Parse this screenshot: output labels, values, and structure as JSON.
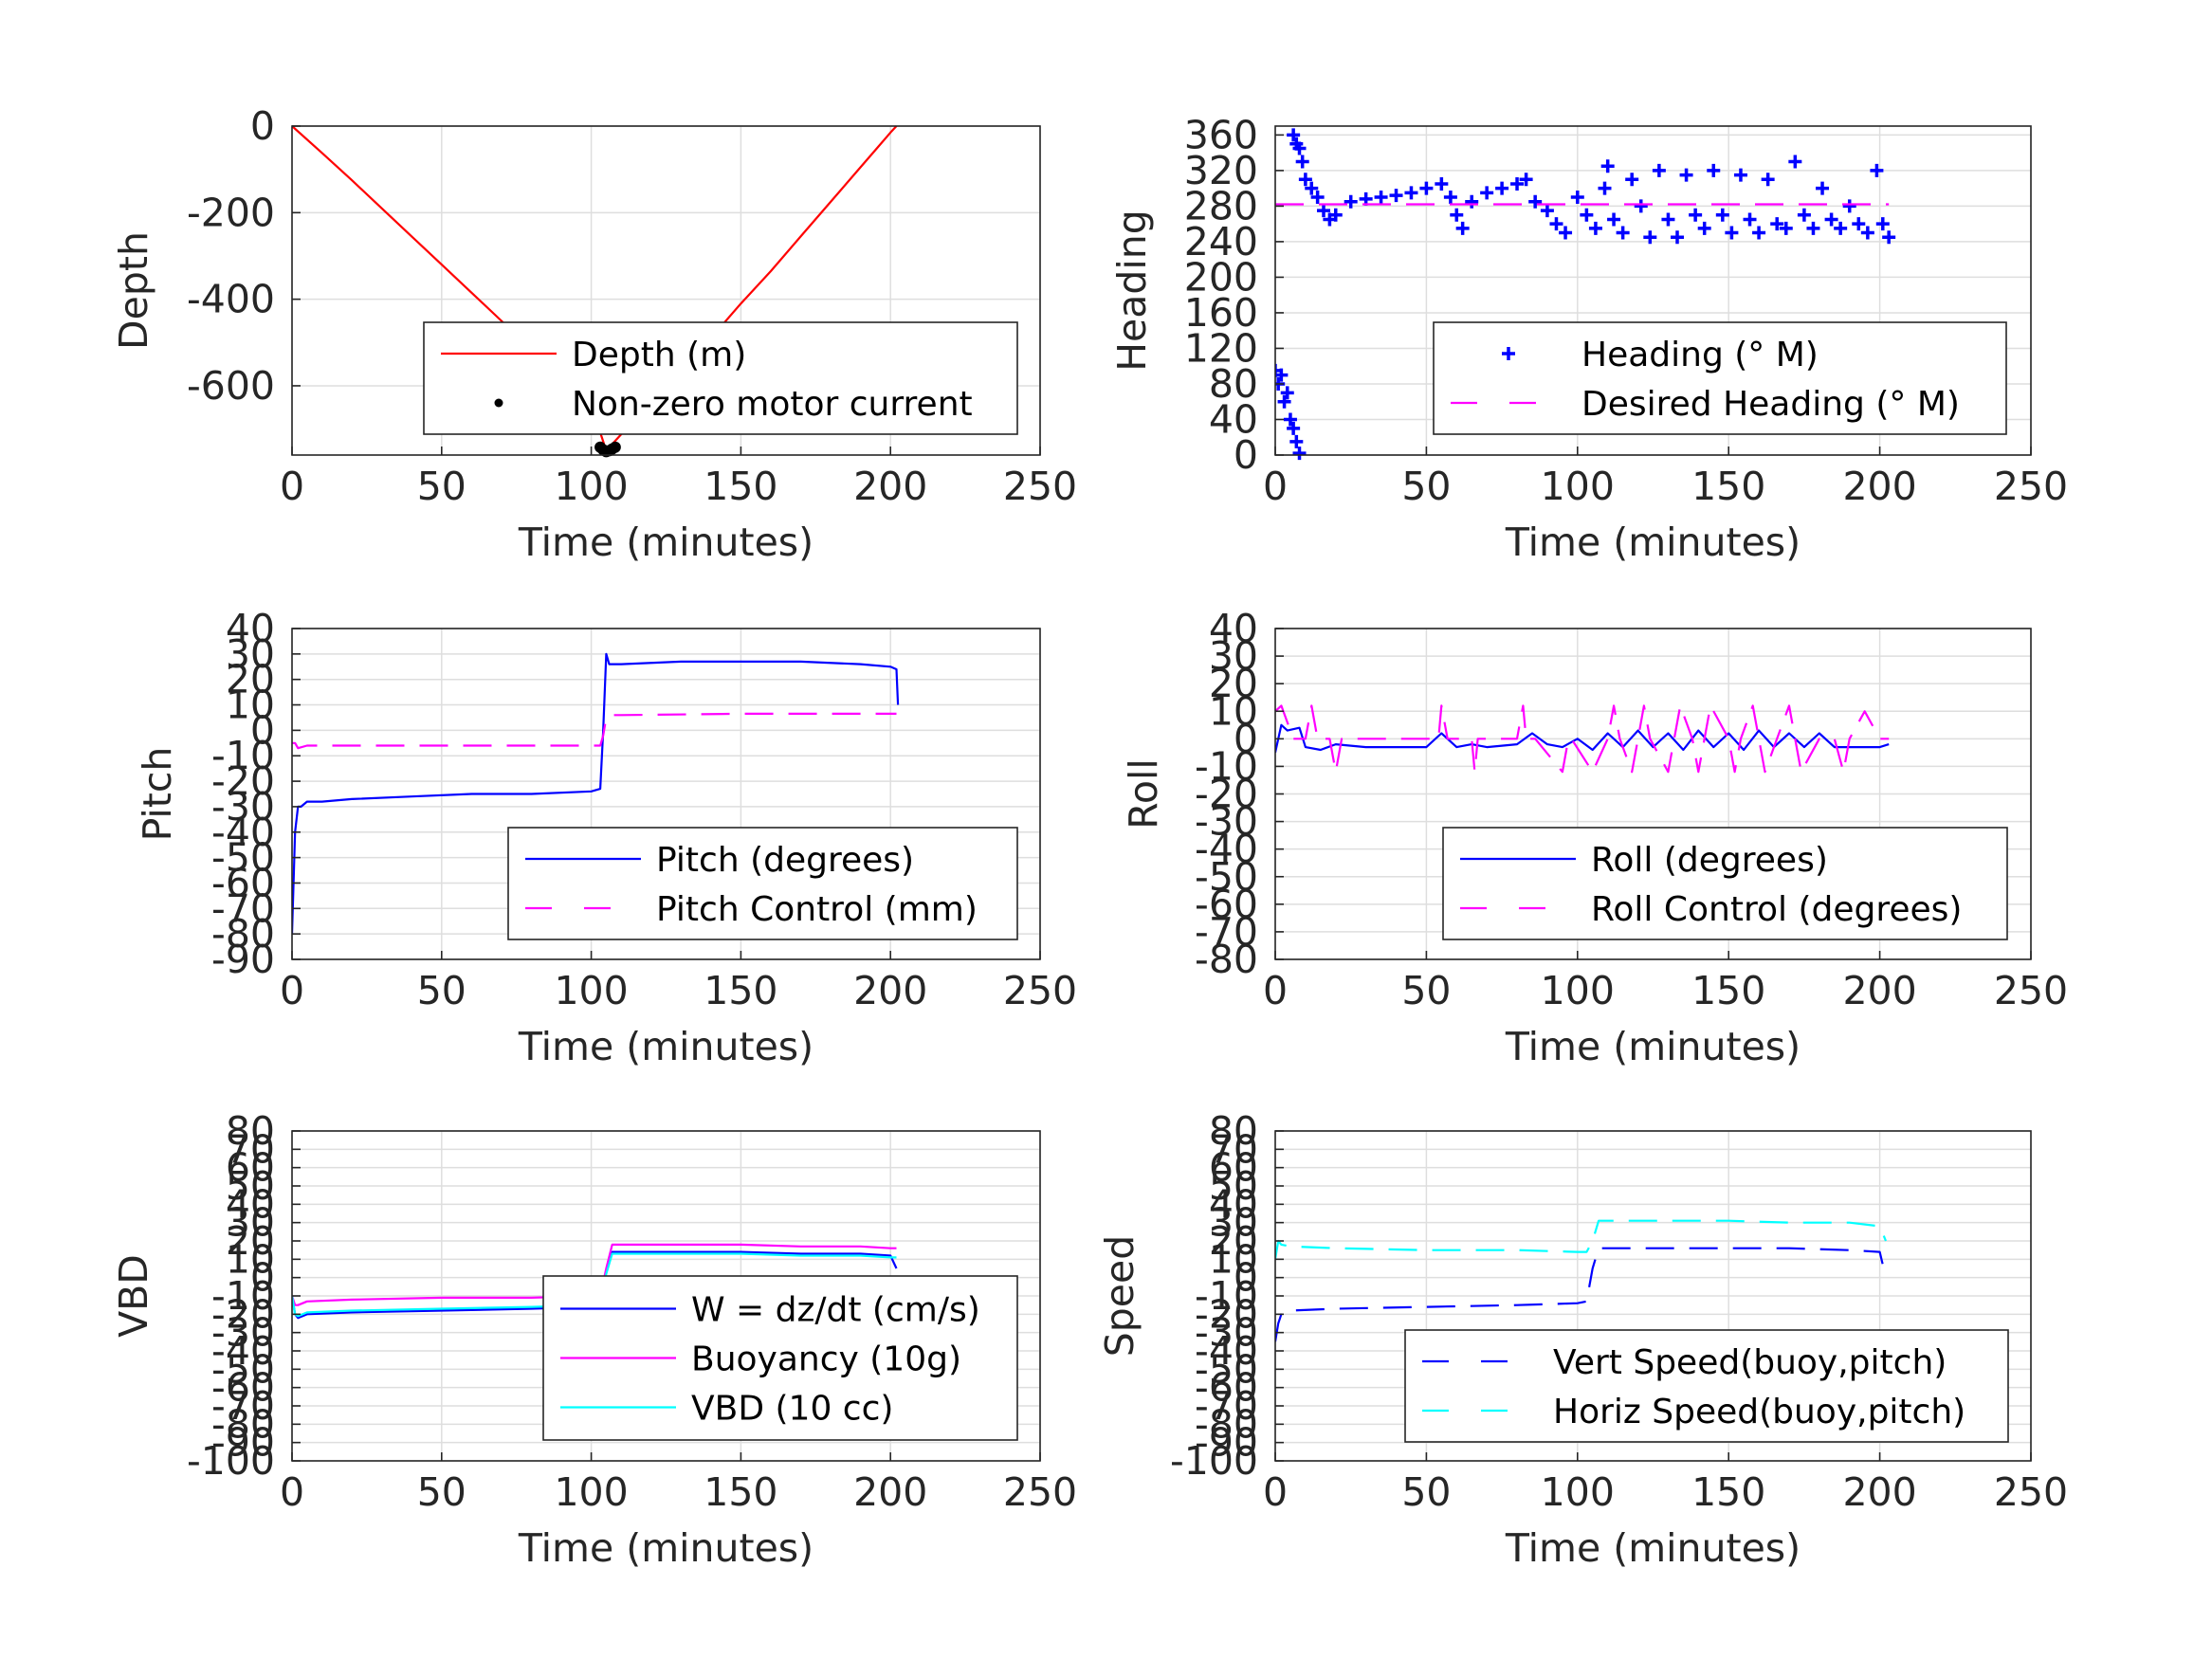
{
  "chart_data": [
    {
      "type": "line",
      "xlabel": "Time (minutes)",
      "ylabel": "Depth",
      "xlim": [
        0,
        250
      ],
      "ylim": [
        -760,
        0
      ],
      "xticks": [
        0,
        50,
        100,
        150,
        200,
        250
      ],
      "yticks": [
        0,
        -200,
        -400,
        -600
      ],
      "ytick_labels": [
        "0",
        "-200",
        "-400",
        "-600"
      ],
      "grid": true,
      "legend_position": "bottom-right",
      "series": [
        {
          "name": "Depth (m)",
          "style": "solid",
          "color": "#ff0000",
          "x": [
            0,
            10,
            20,
            30,
            40,
            50,
            60,
            70,
            80,
            90,
            100,
            105,
            110,
            120,
            130,
            140,
            150,
            160,
            170,
            180,
            190,
            195,
            200,
            202
          ],
          "y": [
            0,
            -62,
            -125,
            -190,
            -255,
            -320,
            -385,
            -450,
            -515,
            -580,
            -645,
            -750,
            -712,
            -640,
            -565,
            -490,
            -410,
            -335,
            -255,
            -175,
            -95,
            -55,
            -15,
            0
          ]
        },
        {
          "name": "Non-zero motor current",
          "style": "points",
          "color": "#000000",
          "x": [
            103,
            104,
            105,
            106,
            107,
            108
          ],
          "y": [
            -742,
            -748,
            -752,
            -750,
            -746,
            -742
          ]
        }
      ]
    },
    {
      "type": "scatter",
      "xlabel": "Time (minutes)",
      "ylabel": "Heading",
      "xlim": [
        0,
        250
      ],
      "ylim": [
        0,
        370
      ],
      "xticks": [
        0,
        50,
        100,
        150,
        200,
        250
      ],
      "yticks": [
        0,
        40,
        80,
        120,
        160,
        200,
        240,
        280,
        320,
        360
      ],
      "ytick_labels": [
        "0",
        "40",
        "80",
        "120",
        "160",
        "200",
        "240",
        "280",
        "320",
        "360"
      ],
      "grid": true,
      "legend_position": "bottom-right",
      "series": [
        {
          "name": "Heading (° M)",
          "style": "plus",
          "color": "#0000ff",
          "x": [
            0,
            1,
            2,
            3,
            4,
            5,
            6,
            7,
            8,
            6,
            7,
            8,
            9,
            10,
            12,
            14,
            16,
            18,
            20,
            25,
            30,
            35,
            40,
            45,
            50,
            55,
            58,
            60,
            62,
            65,
            70,
            75,
            80,
            83,
            86,
            90,
            93,
            96,
            100,
            103,
            106,
            109,
            110,
            112,
            115,
            118,
            121,
            124,
            127,
            130,
            133,
            136,
            139,
            142,
            145,
            148,
            151,
            154,
            157,
            160,
            163,
            166,
            169,
            172,
            175,
            178,
            181,
            184,
            187,
            190,
            193,
            196,
            199,
            201,
            203
          ],
          "y": [
            95,
            80,
            90,
            60,
            70,
            40,
            30,
            15,
            2,
            360,
            350,
            345,
            330,
            310,
            300,
            290,
            275,
            265,
            270,
            285,
            288,
            290,
            292,
            295,
            300,
            305,
            290,
            270,
            255,
            285,
            295,
            300,
            305,
            310,
            285,
            275,
            260,
            250,
            290,
            270,
            255,
            300,
            325,
            265,
            250,
            310,
            280,
            245,
            320,
            265,
            245,
            315,
            270,
            255,
            320,
            270,
            250,
            315,
            265,
            250,
            310,
            260,
            255,
            330,
            270,
            255,
            300,
            265,
            255,
            280,
            260,
            250,
            320,
            260,
            245
          ]
        },
        {
          "name": "Desired Heading (° M)",
          "style": "dashed",
          "color": "#ff00ff",
          "x": [
            0,
            203
          ],
          "y": [
            282,
            282
          ]
        }
      ]
    },
    {
      "type": "line",
      "xlabel": "Time (minutes)",
      "ylabel": "Pitch",
      "xlim": [
        0,
        250
      ],
      "ylim": [
        -90,
        40
      ],
      "xticks": [
        0,
        50,
        100,
        150,
        200,
        250
      ],
      "yticks": [
        40,
        30,
        20,
        10,
        0,
        -10,
        -20,
        -30,
        -40,
        -50,
        -60,
        -70,
        -80,
        -90
      ],
      "ytick_labels": [
        "40",
        "30",
        "20",
        "10",
        "0",
        "-10",
        "-20",
        "-30",
        "-40",
        "-50",
        "-60",
        "-70",
        "-80",
        "-90"
      ],
      "grid": true,
      "legend_position": "bottom-right",
      "series": [
        {
          "name": "Pitch (degrees)",
          "style": "solid",
          "color": "#0000ff",
          "x": [
            0,
            1,
            2,
            3,
            5,
            10,
            20,
            40,
            60,
            80,
            100,
            103,
            104,
            105,
            106,
            110,
            130,
            150,
            170,
            190,
            200,
            202,
            202.5
          ],
          "y": [
            -80,
            -40,
            -30,
            -30,
            -28,
            -28,
            -27,
            -26,
            -25,
            -25,
            -24,
            -23,
            0,
            30,
            26,
            26,
            27,
            27,
            27,
            26,
            25,
            24,
            10
          ]
        },
        {
          "name": "Pitch Control (mm)",
          "style": "dashed",
          "color": "#ff00ff",
          "x": [
            0,
            1,
            2,
            5,
            50,
            100,
            103,
            104,
            105,
            106,
            110,
            150,
            200,
            202
          ],
          "y": [
            -5,
            -5,
            -7,
            -6,
            -6,
            -6,
            -6,
            -2,
            5,
            6,
            6,
            6.5,
            6.5,
            6.5
          ]
        }
      ]
    },
    {
      "type": "line",
      "xlabel": "Time (minutes)",
      "ylabel": "Roll",
      "xlim": [
        0,
        250
      ],
      "ylim": [
        -80,
        40
      ],
      "xticks": [
        0,
        50,
        100,
        150,
        200,
        250
      ],
      "yticks": [
        40,
        30,
        20,
        10,
        0,
        -10,
        -20,
        -30,
        -40,
        -50,
        -60,
        -70,
        -80
      ],
      "ytick_labels": [
        "40",
        "30",
        "20",
        "10",
        "0",
        "-10",
        "-20",
        "-30",
        "-40",
        "-50",
        "-60",
        "-70",
        "-80"
      ],
      "grid": true,
      "legend_position": "bottom-right",
      "series": [
        {
          "name": "Roll (degrees)",
          "style": "solid",
          "color": "#0000ff",
          "x": [
            0,
            2,
            4,
            8,
            10,
            15,
            20,
            30,
            40,
            50,
            55,
            60,
            65,
            70,
            80,
            85,
            90,
            95,
            100,
            105,
            110,
            115,
            120,
            125,
            130,
            135,
            140,
            145,
            150,
            155,
            160,
            165,
            170,
            175,
            180,
            185,
            190,
            195,
            200,
            203
          ],
          "y": [
            -5,
            5,
            3,
            4,
            -3,
            -4,
            -2,
            -3,
            -3,
            -3,
            2,
            -3,
            -2,
            -3,
            -2,
            2,
            -2,
            -3,
            0,
            -4,
            2,
            -3,
            3,
            -3,
            2,
            -4,
            3,
            -3,
            2,
            -4,
            3,
            -3,
            2,
            -3,
            2,
            -3,
            -3,
            -3,
            -3,
            -2
          ]
        },
        {
          "name": "Roll Control (degrees)",
          "style": "dashed",
          "color": "#ff00ff",
          "x": [
            0,
            2,
            6,
            10,
            12,
            14,
            18,
            20,
            22,
            30,
            50,
            54,
            55,
            57,
            65,
            66,
            67,
            80,
            82,
            83,
            86,
            95,
            97,
            98,
            105,
            110,
            112,
            114,
            118,
            120,
            122,
            124,
            130,
            132,
            134,
            138,
            140,
            142,
            144,
            150,
            152,
            154,
            158,
            160,
            162,
            166,
            170,
            172,
            174,
            180,
            185,
            188,
            190,
            195,
            200,
            203
          ],
          "y": [
            10,
            12,
            0,
            0,
            12,
            0,
            0,
            -12,
            0,
            0,
            0,
            0,
            12,
            0,
            0,
            -12,
            0,
            0,
            12,
            0,
            0,
            -12,
            0,
            0,
            -12,
            0,
            12,
            0,
            -12,
            0,
            12,
            0,
            -12,
            0,
            12,
            0,
            -12,
            0,
            12,
            0,
            -12,
            0,
            12,
            0,
            -12,
            0,
            12,
            0,
            -12,
            0,
            0,
            -12,
            0,
            10,
            0,
            0
          ]
        }
      ]
    },
    {
      "type": "line",
      "xlabel": "Time (minutes)",
      "ylabel": "VBD",
      "xlim": [
        0,
        250
      ],
      "ylim": [
        -100,
        80
      ],
      "xticks": [
        0,
        50,
        100,
        150,
        200,
        250
      ],
      "yticks": [
        80,
        70,
        60,
        50,
        40,
        30,
        20,
        10,
        0,
        -10,
        -20,
        -30,
        -40,
        -50,
        -60,
        -70,
        -80,
        -90,
        -100
      ],
      "ytick_labels": [
        "80",
        "70",
        "60",
        "50",
        "40",
        "30",
        "20",
        "10",
        "0",
        "-10",
        "-20",
        "-30",
        "-40",
        "-50",
        "-60",
        "-70",
        "-80",
        "-90",
        "-100"
      ],
      "grid": true,
      "legend_position": "bottom-right",
      "series": [
        {
          "name": "W = dz/dt (cm/s)",
          "style": "solid",
          "color": "#0000ff",
          "x": [
            0,
            1,
            2,
            5,
            20,
            50,
            80,
            100,
            103,
            105,
            107,
            110,
            130,
            150,
            170,
            190,
            200,
            202
          ],
          "y": [
            -10,
            -20,
            -22,
            -20,
            -19,
            -18,
            -17,
            -16,
            -15,
            3,
            14,
            14,
            14,
            14,
            13,
            13,
            12,
            5
          ]
        },
        {
          "name": "Buoyancy (10g)",
          "style": "solid",
          "color": "#ff00ff",
          "x": [
            0,
            1,
            2,
            5,
            20,
            50,
            80,
            100,
            103,
            105,
            107,
            110,
            130,
            150,
            170,
            190,
            200,
            202
          ],
          "y": [
            -10,
            -15,
            -15,
            -13,
            -12,
            -11,
            -11,
            -10,
            -10,
            5,
            18,
            18,
            18,
            18,
            17,
            17,
            16,
            16
          ]
        },
        {
          "name": "VBD (10 cc)",
          "style": "solid",
          "color": "#00ffff",
          "x": [
            0,
            1,
            2,
            5,
            20,
            50,
            80,
            100,
            103,
            105,
            107,
            110,
            130,
            150,
            170,
            190,
            200,
            202
          ],
          "y": [
            -10,
            -20,
            -21,
            -19,
            -18,
            -17,
            -16,
            -15,
            -14,
            2,
            13,
            13,
            13,
            13,
            12,
            12,
            11,
            11
          ]
        }
      ]
    },
    {
      "type": "line",
      "xlabel": "Time (minutes)",
      "ylabel": "Speed",
      "xlim": [
        0,
        250
      ],
      "ylim": [
        -100,
        80
      ],
      "xticks": [
        0,
        50,
        100,
        150,
        200,
        250
      ],
      "yticks": [
        80,
        70,
        60,
        50,
        40,
        30,
        20,
        10,
        0,
        -10,
        -20,
        -30,
        -40,
        -50,
        -60,
        -70,
        -80,
        -90,
        -100
      ],
      "ytick_labels": [
        "80",
        "70",
        "60",
        "50",
        "40",
        "30",
        "20",
        "10",
        "0",
        "-10",
        "-20",
        "-30",
        "-40",
        "-50",
        "-60",
        "-70",
        "-80",
        "-90",
        "-100"
      ],
      "grid": true,
      "legend_position": "bottom-right",
      "series": [
        {
          "name": "Vert Speed(buoy,pitch)",
          "style": "dashed",
          "color": "#0000ff",
          "x": [
            0,
            1,
            2,
            5,
            20,
            50,
            80,
            100,
            103,
            105,
            107,
            110,
            130,
            150,
            170,
            190,
            200,
            202
          ],
          "y": [
            -35,
            -25,
            -20,
            -18,
            -17,
            -16,
            -15,
            -14,
            -13,
            5,
            16,
            16,
            16,
            16,
            16,
            15,
            14,
            0
          ]
        },
        {
          "name": "Horiz Speed(buoy,pitch)",
          "style": "dashed",
          "color": "#00ffff",
          "x": [
            0,
            1,
            2,
            5,
            20,
            50,
            80,
            100,
            103,
            105,
            107,
            110,
            130,
            150,
            170,
            190,
            200,
            202
          ],
          "y": [
            10,
            20,
            18,
            17,
            16,
            15,
            15,
            14,
            14,
            20,
            31,
            31,
            31,
            31,
            30,
            30,
            28,
            20
          ]
        }
      ]
    }
  ]
}
